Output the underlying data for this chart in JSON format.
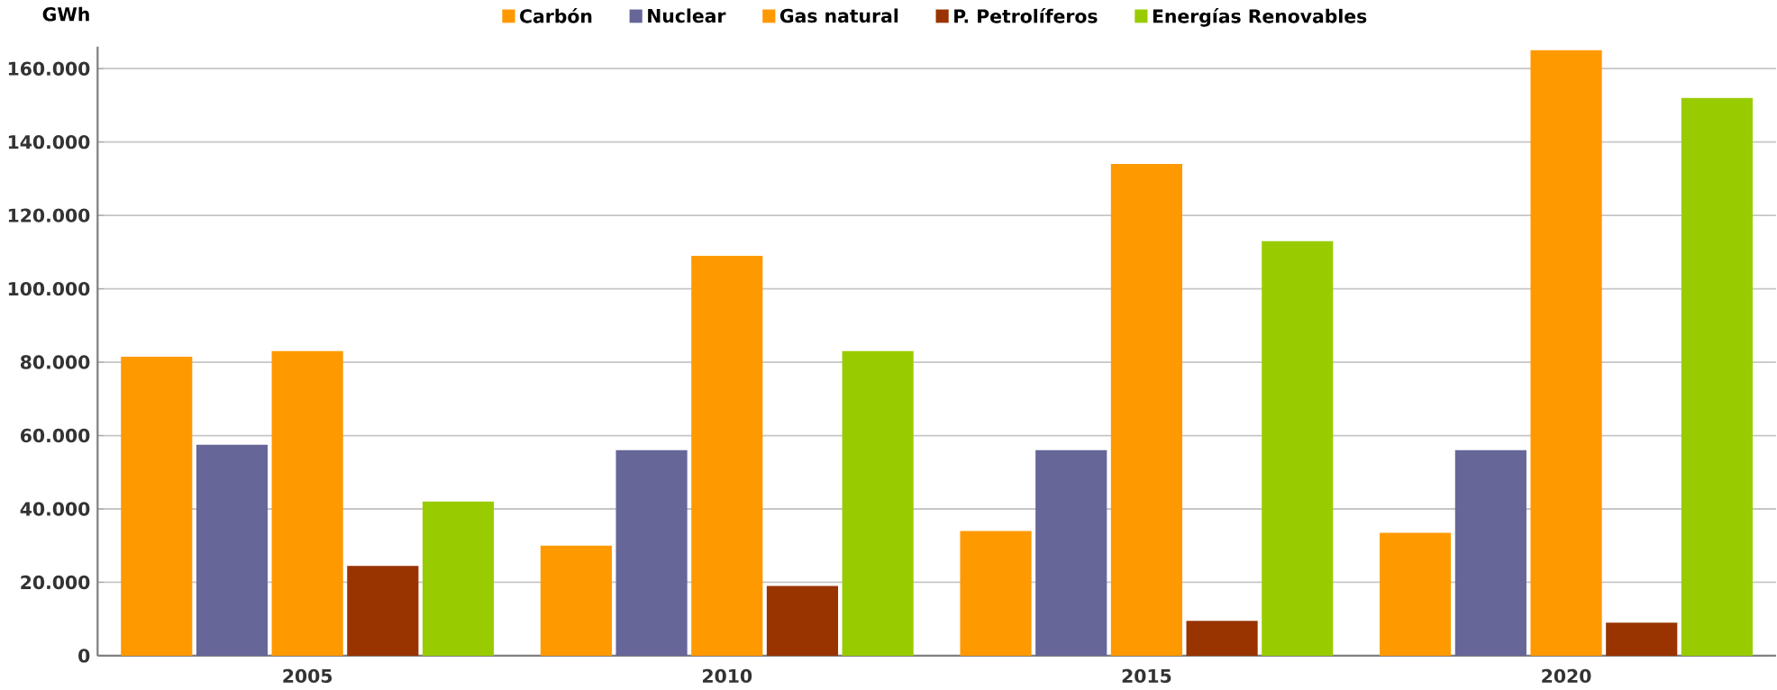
{
  "chart_data": {
    "type": "bar",
    "ylabel": "GWh",
    "categories": [
      "2005",
      "2010",
      "2015",
      "2020"
    ],
    "series": [
      {
        "name": "Carbón",
        "color": "#ff9900",
        "values": [
          81500,
          30000,
          34000,
          33500
        ]
      },
      {
        "name": "Nuclear",
        "color": "#666699",
        "values": [
          57500,
          56000,
          56000,
          56000
        ]
      },
      {
        "name": "Gas natural",
        "color": "#ff9900",
        "values": [
          83000,
          109000,
          134000,
          165000
        ]
      },
      {
        "name": "P. Petrolíferos",
        "color": "#993300",
        "values": [
          24500,
          19000,
          9500,
          9000
        ]
      },
      {
        "name": "Energías Renovables",
        "color": "#99cc00",
        "values": [
          42000,
          83000,
          113000,
          152000
        ]
      }
    ],
    "ylim": [
      0,
      166000
    ],
    "yticks": [
      {
        "value": 0,
        "label": "0"
      },
      {
        "value": 20000,
        "label": "20.000"
      },
      {
        "value": 40000,
        "label": "40.000"
      },
      {
        "value": 60000,
        "label": "60.000"
      },
      {
        "value": 80000,
        "label": "80.000"
      },
      {
        "value": 100000,
        "label": "100.000"
      },
      {
        "value": 120000,
        "label": "120.000"
      },
      {
        "value": 140000,
        "label": "140.000"
      },
      {
        "value": 160000,
        "label": "160.000"
      }
    ],
    "grid": "y",
    "legend": "top"
  }
}
